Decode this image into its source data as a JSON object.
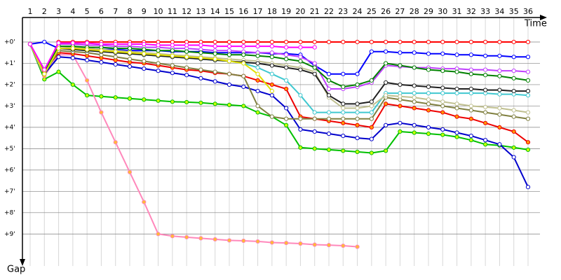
{
  "chart_data": {
    "type": "line",
    "x_label": "Time",
    "y_label": "Gap",
    "categories": [
      "1",
      "2",
      "3",
      "4",
      "5",
      "6",
      "7",
      "8",
      "9",
      "10",
      "11",
      "12",
      "13",
      "14",
      "15",
      "16",
      "17",
      "18",
      "19",
      "20",
      "21",
      "22",
      "23",
      "24",
      "25",
      "26",
      "27",
      "28",
      "29",
      "30",
      "31",
      "32",
      "33",
      "34",
      "35",
      "36"
    ],
    "ylim": [
      -1,
      10.5
    ],
    "y_inverted": true,
    "grid": true,
    "yticks": [
      {
        "value": 0,
        "label": "+0'"
      },
      {
        "value": 1,
        "label": "+1'"
      },
      {
        "value": 2,
        "label": "+2'"
      },
      {
        "value": 3,
        "label": "+3'"
      },
      {
        "value": 4,
        "label": "+4'"
      },
      {
        "value": 5,
        "label": "+5'"
      },
      {
        "value": 6,
        "label": "+6'"
      },
      {
        "value": 7,
        "label": "+7'"
      },
      {
        "value": 8,
        "label": "+8'"
      },
      {
        "value": 9,
        "label": "+9'"
      }
    ],
    "series": [
      {
        "color": "#ff0000",
        "marker_color": "#ffffff",
        "values": [
          0.1,
          1.4,
          0,
          0,
          0,
          0,
          0,
          0,
          0,
          0,
          0,
          0,
          0,
          0,
          0,
          0,
          0,
          0,
          0,
          0,
          0,
          0,
          0,
          0,
          0,
          0,
          0,
          0,
          0,
          0,
          0,
          0,
          0,
          0,
          0,
          0
        ]
      },
      {
        "color": "#0000ff",
        "marker_color": "#ffffff",
        "values": [
          0.1,
          0,
          0.3,
          0.3,
          0.3,
          0.35,
          0.35,
          0.4,
          0.4,
          0.4,
          0.45,
          0.45,
          0.45,
          0.5,
          0.5,
          0.5,
          0.5,
          0.55,
          0.55,
          0.6,
          1.1,
          1.5,
          1.5,
          1.5,
          0.45,
          0.45,
          0.5,
          0.5,
          0.55,
          0.55,
          0.6,
          0.6,
          0.65,
          0.65,
          0.7,
          0.7
        ]
      },
      {
        "color": "#00c000",
        "marker_color": "#ccff00",
        "values": [
          0.1,
          1.75,
          1.4,
          2.0,
          2.5,
          2.55,
          2.6,
          2.65,
          2.7,
          2.75,
          2.8,
          2.82,
          2.85,
          2.9,
          2.95,
          3.0,
          3.3,
          3.5,
          3.9,
          4.95,
          5.0,
          5.05,
          5.1,
          5.15,
          5.2,
          5.1,
          4.2,
          4.25,
          4.3,
          4.35,
          4.45,
          4.6,
          4.8,
          4.85,
          4.95,
          5.05
        ]
      },
      {
        "color": "#ff88bb",
        "marker_color": "#ffbb33",
        "values": [
          0.1,
          1.6,
          0.6,
          0.6,
          1.8,
          3.3,
          4.7,
          6.1,
          7.5,
          9.0,
          9.1,
          9.15,
          9.2,
          9.25,
          9.3,
          9.32,
          9.35,
          9.4,
          9.42,
          9.45,
          9.5,
          9.52,
          9.55,
          9.6,
          null,
          null,
          null,
          null,
          null,
          null,
          null,
          null,
          null,
          null,
          null,
          null
        ]
      },
      {
        "color": "#0000cc",
        "marker_color": "#ffffff",
        "values": [
          0.1,
          1.5,
          0.7,
          0.75,
          0.85,
          0.95,
          1.05,
          1.15,
          1.25,
          1.35,
          1.45,
          1.55,
          1.7,
          1.85,
          2.0,
          2.1,
          2.3,
          2.5,
          3.1,
          4.1,
          4.2,
          4.3,
          4.4,
          4.5,
          4.55,
          3.9,
          3.8,
          3.9,
          4.0,
          4.1,
          4.25,
          4.4,
          4.6,
          4.8,
          5.4,
          6.8
        ]
      },
      {
        "color": "#ee0000",
        "marker_color": "#ff9900",
        "values": [
          0.1,
          1.4,
          0.5,
          0.55,
          0.65,
          0.75,
          0.85,
          0.95,
          1.0,
          1.1,
          1.2,
          1.3,
          1.35,
          1.45,
          1.5,
          1.6,
          1.8,
          2.0,
          2.2,
          3.5,
          3.6,
          3.7,
          3.8,
          3.9,
          4.0,
          2.9,
          3.0,
          3.1,
          3.2,
          3.3,
          3.5,
          3.6,
          3.8,
          4.0,
          4.2,
          4.7
        ]
      },
      {
        "color": "#808040",
        "marker_color": "#ffffff",
        "values": [
          0.1,
          1.5,
          0.4,
          0.45,
          0.5,
          0.6,
          0.7,
          0.8,
          0.9,
          1.0,
          1.1,
          1.2,
          1.3,
          1.4,
          1.5,
          1.6,
          3.0,
          3.5,
          3.6,
          3.6,
          3.6,
          3.6,
          3.6,
          3.6,
          3.6,
          2.6,
          2.7,
          2.8,
          2.9,
          3.0,
          3.1,
          3.2,
          3.3,
          3.4,
          3.5,
          3.6
        ]
      },
      {
        "color": "#40c8d0",
        "marker_color": "#ffffff",
        "values": [
          0.1,
          1.5,
          0.3,
          0.35,
          0.4,
          0.45,
          0.5,
          0.55,
          0.6,
          0.65,
          0.7,
          0.75,
          0.8,
          0.85,
          0.9,
          1.0,
          1.2,
          1.5,
          1.8,
          2.5,
          3.3,
          3.3,
          3.3,
          3.3,
          3.3,
          2.4,
          2.4,
          2.4,
          2.4,
          2.4,
          2.4,
          2.4,
          2.4,
          2.45,
          2.45,
          2.5
        ]
      },
      {
        "color": "#c0c090",
        "marker_color": "#ffffff",
        "values": [
          0.1,
          1.5,
          0.2,
          0.25,
          0.3,
          0.35,
          0.4,
          0.45,
          0.5,
          0.55,
          0.6,
          0.65,
          0.7,
          0.75,
          0.8,
          0.85,
          0.9,
          1.0,
          1.1,
          1.2,
          1.4,
          2.6,
          3.1,
          3.1,
          3.0,
          2.5,
          2.55,
          2.6,
          2.7,
          2.8,
          2.9,
          3.0,
          3.05,
          3.1,
          3.2,
          3.3
        ]
      },
      {
        "color": "#202020",
        "marker_color": "#ffffff",
        "values": [
          0.1,
          1.4,
          0.3,
          0.35,
          0.4,
          0.45,
          0.5,
          0.55,
          0.6,
          0.65,
          0.7,
          0.75,
          0.8,
          0.85,
          0.9,
          0.95,
          1.0,
          1.1,
          1.2,
          1.3,
          1.5,
          2.5,
          2.9,
          2.9,
          2.8,
          1.9,
          2.0,
          2.05,
          2.1,
          2.15,
          2.2,
          2.2,
          2.25,
          2.25,
          2.3,
          2.3
        ]
      },
      {
        "color": "#c040ff",
        "marker_color": "#ffffff",
        "values": [
          0.1,
          1.3,
          0.1,
          0.1,
          0.15,
          0.15,
          0.2,
          0.2,
          0.25,
          0.25,
          0.3,
          0.3,
          0.35,
          0.4,
          0.4,
          0.45,
          0.5,
          0.5,
          0.6,
          0.7,
          1.0,
          2.2,
          2.2,
          2.1,
          1.9,
          1.1,
          1.15,
          1.2,
          1.2,
          1.25,
          1.25,
          1.3,
          1.3,
          1.35,
          1.35,
          1.4
        ]
      },
      {
        "color": "#008000",
        "marker_color": "#ffffff",
        "values": [
          0.1,
          1.4,
          0.2,
          0.2,
          0.25,
          0.25,
          0.3,
          0.3,
          0.35,
          0.4,
          0.4,
          0.45,
          0.5,
          0.55,
          0.6,
          0.6,
          0.65,
          0.7,
          0.8,
          0.9,
          1.2,
          1.8,
          2.1,
          2.0,
          1.8,
          1.0,
          1.1,
          1.2,
          1.3,
          1.35,
          1.4,
          1.5,
          1.55,
          1.6,
          1.7,
          1.8
        ]
      },
      {
        "color": "#e0e000",
        "marker_color": "#ffffff",
        "values": [
          0.1,
          1.5,
          0.3,
          0.3,
          0.35,
          0.4,
          0.45,
          0.5,
          0.55,
          0.6,
          0.65,
          0.7,
          0.75,
          0.8,
          0.9,
          1.0,
          1.5,
          2.3,
          null,
          null,
          null,
          null,
          null,
          null,
          null,
          null,
          null,
          null,
          null,
          null,
          null,
          null,
          null,
          null,
          null,
          null
        ]
      },
      {
        "color": "#ff00ff",
        "marker_color": "#ffffff",
        "values": [
          0.1,
          1.3,
          0.05,
          0.05,
          0.05,
          0.1,
          0.1,
          0.1,
          0.1,
          0.15,
          0.15,
          0.15,
          0.15,
          0.2,
          0.2,
          0.2,
          0.2,
          0.2,
          0.25,
          0.25,
          0.25,
          null,
          null,
          null,
          null,
          null,
          null,
          null,
          null,
          null,
          null,
          null,
          null,
          null,
          null,
          null
        ]
      }
    ]
  }
}
